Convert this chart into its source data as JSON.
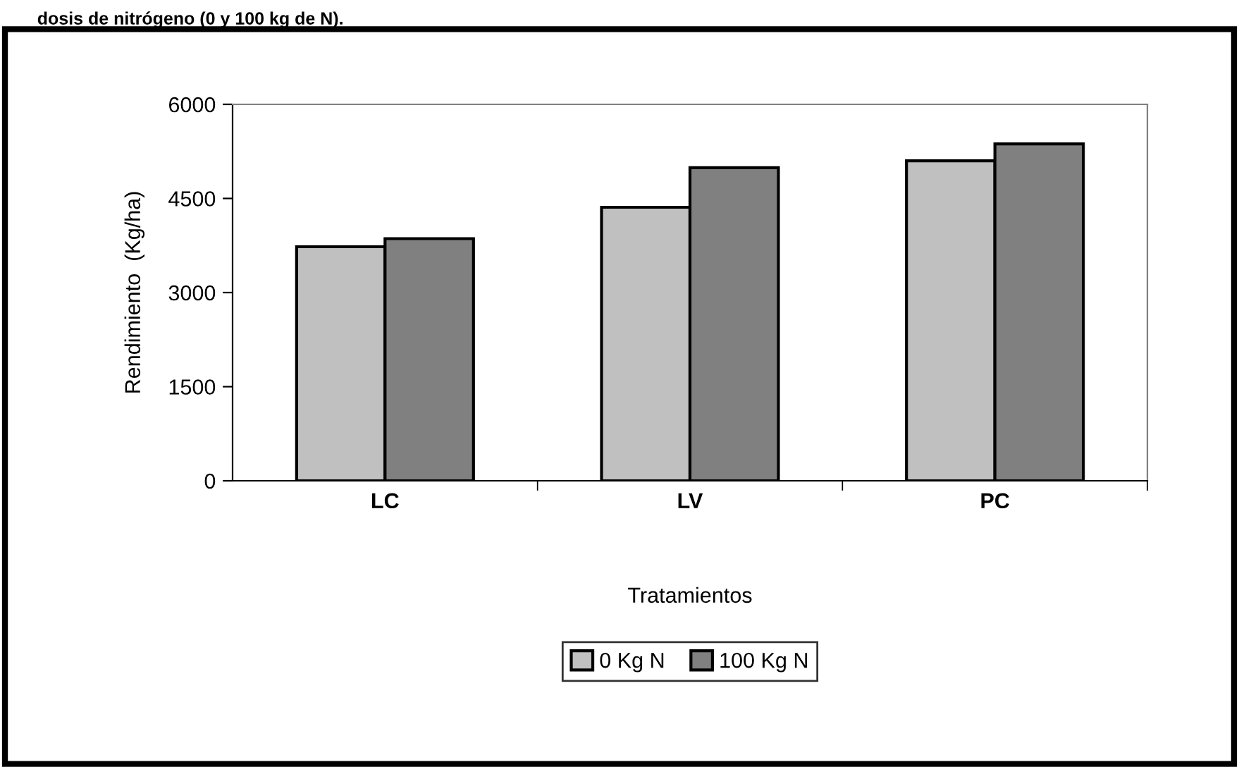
{
  "chart_data": {
    "type": "bar",
    "annotations": [
      "dosis de nitrógeno (0 y 100 kg de N)."
    ],
    "xlabel": "Tratamientos",
    "ylabel": "Rendimiento  (Kg/ha)",
    "categories": [
      "LC",
      "LV",
      "PC"
    ],
    "series": [
      {
        "name": "0 Kg N",
        "color": "#c0c0c0",
        "values": [
          3730,
          4360,
          5100
        ]
      },
      {
        "name": "100 Kg N",
        "color": "#808080",
        "values": [
          3860,
          4990,
          5370
        ]
      }
    ],
    "ylim": [
      0,
      6000
    ],
    "yticks": [
      0,
      1500,
      3000,
      4500,
      6000
    ],
    "grid": false,
    "legend": "bottom"
  }
}
